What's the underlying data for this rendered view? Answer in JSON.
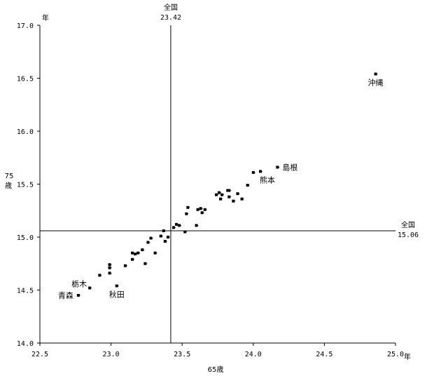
{
  "chart_data": {
    "type": "scatter",
    "xlabel": "65歳",
    "x_unit": "年",
    "ylabel_top": "75",
    "ylabel_bottom": "歳",
    "y_unit": "年",
    "xlim": [
      22.5,
      25.0
    ],
    "ylim": [
      14.0,
      17.0
    ],
    "x_ticks": [
      "22.5",
      "23.0",
      "23.5",
      "24.0",
      "24.5",
      "25.0"
    ],
    "y_ticks": [
      "14.0",
      "14.5",
      "15.0",
      "15.5",
      "16.0",
      "16.5",
      "17.0"
    ],
    "grid": false,
    "reference_lines": {
      "x": {
        "label": "全国",
        "value_label": "23.42",
        "value": 23.42
      },
      "y": {
        "label": "全国",
        "value_label": "15.06",
        "value": 15.06
      }
    },
    "points": [
      {
        "x": 22.77,
        "y": 14.45,
        "label": "青森",
        "label_pos": "left"
      },
      {
        "x": 22.85,
        "y": 14.52,
        "label": "栃木",
        "label_pos": "upper-left"
      },
      {
        "x": 23.04,
        "y": 14.54,
        "label": "秋田",
        "label_pos": "below"
      },
      {
        "x": 22.92,
        "y": 14.64
      },
      {
        "x": 22.99,
        "y": 14.66
      },
      {
        "x": 22.99,
        "y": 14.71
      },
      {
        "x": 22.99,
        "y": 14.74
      },
      {
        "x": 23.1,
        "y": 14.73
      },
      {
        "x": 23.15,
        "y": 14.79
      },
      {
        "x": 23.24,
        "y": 14.75
      },
      {
        "x": 23.15,
        "y": 14.85
      },
      {
        "x": 23.17,
        "y": 14.84
      },
      {
        "x": 23.19,
        "y": 14.85
      },
      {
        "x": 23.22,
        "y": 14.88
      },
      {
        "x": 23.31,
        "y": 14.85
      },
      {
        "x": 23.26,
        "y": 14.95
      },
      {
        "x": 23.28,
        "y": 14.99
      },
      {
        "x": 23.38,
        "y": 14.96
      },
      {
        "x": 23.35,
        "y": 15.01
      },
      {
        "x": 23.4,
        "y": 15.0
      },
      {
        "x": 23.37,
        "y": 15.06
      },
      {
        "x": 23.52,
        "y": 15.05
      },
      {
        "x": 23.44,
        "y": 15.09
      },
      {
        "x": 23.46,
        "y": 15.12
      },
      {
        "x": 23.48,
        "y": 15.11
      },
      {
        "x": 23.53,
        "y": 15.22
      },
      {
        "x": 23.54,
        "y": 15.28
      },
      {
        "x": 23.6,
        "y": 15.11
      },
      {
        "x": 23.61,
        "y": 15.26
      },
      {
        "x": 23.63,
        "y": 15.27
      },
      {
        "x": 23.64,
        "y": 15.23
      },
      {
        "x": 23.66,
        "y": 15.26
      },
      {
        "x": 23.74,
        "y": 15.4
      },
      {
        "x": 23.76,
        "y": 15.42
      },
      {
        "x": 23.78,
        "y": 15.4
      },
      {
        "x": 23.77,
        "y": 15.36
      },
      {
        "x": 23.82,
        "y": 15.44
      },
      {
        "x": 23.83,
        "y": 15.44
      },
      {
        "x": 23.83,
        "y": 15.38
      },
      {
        "x": 23.86,
        "y": 15.34
      },
      {
        "x": 23.89,
        "y": 15.41
      },
      {
        "x": 23.92,
        "y": 15.36
      },
      {
        "x": 23.96,
        "y": 15.49
      },
      {
        "x": 24.0,
        "y": 15.61
      },
      {
        "x": 24.05,
        "y": 15.62,
        "label": "熊本",
        "label_pos": "below-right"
      },
      {
        "x": 24.17,
        "y": 15.66,
        "label": "島根",
        "label_pos": "right"
      },
      {
        "x": 24.86,
        "y": 16.54,
        "label": "沖縄",
        "label_pos": "below"
      }
    ]
  }
}
